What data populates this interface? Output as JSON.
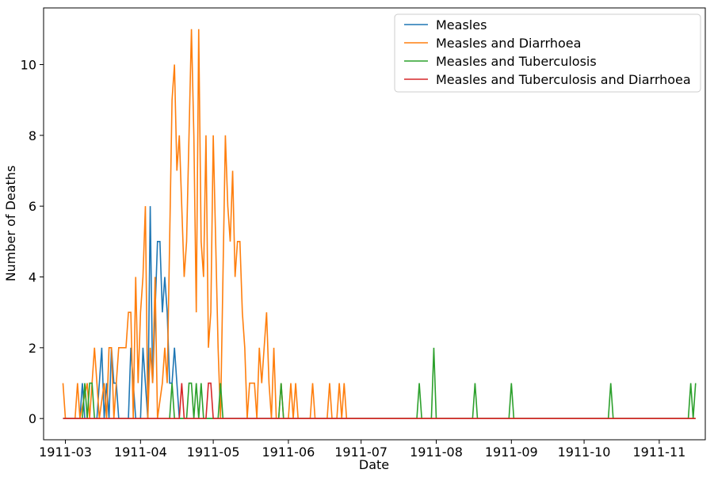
{
  "chart_data": {
    "type": "line",
    "xlabel": "Date",
    "ylabel": "Number of Deaths",
    "x_ticks": [
      "1911-03",
      "1911-04",
      "1911-05",
      "1911-06",
      "1911-07",
      "1911-08",
      "1911-09",
      "1911-10",
      "1911-11"
    ],
    "y_ticks": [
      0,
      2,
      4,
      6,
      8,
      10
    ],
    "xlim": [
      "1911-02-20",
      "1911-11-20"
    ],
    "ylim": [
      -0.6,
      11.6
    ],
    "legend_position": "top-right",
    "grid": false,
    "series": [
      {
        "name": "Measles",
        "color": "#1f77b4",
        "points": [
          [
            "1911-02-28",
            0
          ],
          [
            "1911-03-07",
            0
          ],
          [
            "1911-03-08",
            1
          ],
          [
            "1911-03-09",
            0
          ],
          [
            "1911-03-14",
            0
          ],
          [
            "1911-03-16",
            2
          ],
          [
            "1911-03-17",
            0
          ],
          [
            "1911-03-18",
            1
          ],
          [
            "1911-03-19",
            0
          ],
          [
            "1911-03-20",
            2
          ],
          [
            "1911-03-21",
            1
          ],
          [
            "1911-03-22",
            1
          ],
          [
            "1911-03-23",
            0
          ],
          [
            "1911-03-27",
            0
          ],
          [
            "1911-03-28",
            2
          ],
          [
            "1911-03-29",
            1
          ],
          [
            "1911-03-30",
            0
          ],
          [
            "1911-04-01",
            0
          ],
          [
            "1911-04-02",
            2
          ],
          [
            "1911-04-03",
            1
          ],
          [
            "1911-04-04",
            0
          ],
          [
            "1911-04-05",
            6
          ],
          [
            "1911-04-06",
            1
          ],
          [
            "1911-04-07",
            3
          ],
          [
            "1911-04-08",
            5
          ],
          [
            "1911-04-09",
            5
          ],
          [
            "1911-04-10",
            3
          ],
          [
            "1911-04-11",
            4
          ],
          [
            "1911-04-12",
            3
          ],
          [
            "1911-04-13",
            1
          ],
          [
            "1911-04-14",
            1
          ],
          [
            "1911-04-15",
            2
          ],
          [
            "1911-04-16",
            1
          ],
          [
            "1911-04-17",
            0
          ],
          [
            "1911-11-16",
            0
          ]
        ]
      },
      {
        "name": "Measles and Diarrhoea",
        "color": "#ff7f0e",
        "points": [
          [
            "1911-02-28",
            1
          ],
          [
            "1911-03-01",
            0
          ],
          [
            "1911-03-05",
            0
          ],
          [
            "1911-03-06",
            1
          ],
          [
            "1911-03-07",
            0
          ],
          [
            "1911-03-10",
            1
          ],
          [
            "1911-03-11",
            0
          ],
          [
            "1911-03-12",
            1
          ],
          [
            "1911-03-13",
            2
          ],
          [
            "1911-03-14",
            1
          ],
          [
            "1911-03-15",
            0
          ],
          [
            "1911-03-17",
            1
          ],
          [
            "1911-03-18",
            0
          ],
          [
            "1911-03-19",
            2
          ],
          [
            "1911-03-20",
            2
          ],
          [
            "1911-03-21",
            0
          ],
          [
            "1911-03-22",
            1
          ],
          [
            "1911-03-23",
            2
          ],
          [
            "1911-03-25",
            2
          ],
          [
            "1911-03-26",
            2
          ],
          [
            "1911-03-27",
            3
          ],
          [
            "1911-03-28",
            3
          ],
          [
            "1911-03-29",
            0
          ],
          [
            "1911-03-30",
            4
          ],
          [
            "1911-03-31",
            1
          ],
          [
            "1911-04-01",
            3
          ],
          [
            "1911-04-02",
            4
          ],
          [
            "1911-04-03",
            6
          ],
          [
            "1911-04-04",
            0
          ],
          [
            "1911-04-05",
            2
          ],
          [
            "1911-04-06",
            1
          ],
          [
            "1911-04-07",
            4
          ],
          [
            "1911-04-08",
            0
          ],
          [
            "1911-04-10",
            1
          ],
          [
            "1911-04-11",
            2
          ],
          [
            "1911-04-12",
            1
          ],
          [
            "1911-04-13",
            5
          ],
          [
            "1911-04-14",
            9
          ],
          [
            "1911-04-15",
            10
          ],
          [
            "1911-04-16",
            7
          ],
          [
            "1911-04-17",
            8
          ],
          [
            "1911-04-18",
            6
          ],
          [
            "1911-04-19",
            4
          ],
          [
            "1911-04-20",
            5
          ],
          [
            "1911-04-22",
            11
          ],
          [
            "1911-04-23",
            8
          ],
          [
            "1911-04-24",
            3
          ],
          [
            "1911-04-25",
            11
          ],
          [
            "1911-04-26",
            5
          ],
          [
            "1911-04-27",
            4
          ],
          [
            "1911-04-28",
            8
          ],
          [
            "1911-04-29",
            2
          ],
          [
            "1911-04-30",
            3
          ],
          [
            "1911-05-01",
            8
          ],
          [
            "1911-05-02",
            5
          ],
          [
            "1911-05-03",
            2
          ],
          [
            "1911-05-04",
            0
          ],
          [
            "1911-05-05",
            4
          ],
          [
            "1911-05-06",
            8
          ],
          [
            "1911-05-07",
            6
          ],
          [
            "1911-05-08",
            5
          ],
          [
            "1911-05-09",
            7
          ],
          [
            "1911-05-10",
            4
          ],
          [
            "1911-05-11",
            5
          ],
          [
            "1911-05-12",
            5
          ],
          [
            "1911-05-13",
            3
          ],
          [
            "1911-05-14",
            2
          ],
          [
            "1911-05-15",
            0
          ],
          [
            "1911-05-16",
            1
          ],
          [
            "1911-05-18",
            1
          ],
          [
            "1911-05-19",
            0
          ],
          [
            "1911-05-20",
            2
          ],
          [
            "1911-05-21",
            1
          ],
          [
            "1911-05-22",
            2
          ],
          [
            "1911-05-23",
            3
          ],
          [
            "1911-05-24",
            1
          ],
          [
            "1911-05-25",
            0
          ],
          [
            "1911-05-26",
            2
          ],
          [
            "1911-05-27",
            0
          ],
          [
            "1911-05-28",
            0
          ],
          [
            "1911-05-29",
            1
          ],
          [
            "1911-05-30",
            0
          ],
          [
            "1911-06-01",
            0
          ],
          [
            "1911-06-02",
            1
          ],
          [
            "1911-06-03",
            0
          ],
          [
            "1911-06-04",
            1
          ],
          [
            "1911-06-05",
            0
          ],
          [
            "1911-06-10",
            0
          ],
          [
            "1911-06-11",
            1
          ],
          [
            "1911-06-12",
            0
          ],
          [
            "1911-06-17",
            0
          ],
          [
            "1911-06-18",
            1
          ],
          [
            "1911-06-19",
            0
          ],
          [
            "1911-06-21",
            0
          ],
          [
            "1911-06-22",
            1
          ],
          [
            "1911-06-23",
            0
          ],
          [
            "1911-06-24",
            1
          ],
          [
            "1911-06-25",
            0
          ],
          [
            "1911-11-16",
            0
          ]
        ]
      },
      {
        "name": "Measles and Tuberculosis",
        "color": "#2ca02c",
        "points": [
          [
            "1911-02-28",
            0
          ],
          [
            "1911-03-08",
            0
          ],
          [
            "1911-03-09",
            1
          ],
          [
            "1911-03-10",
            0
          ],
          [
            "1911-03-11",
            1
          ],
          [
            "1911-03-12",
            1
          ],
          [
            "1911-03-13",
            0
          ],
          [
            "1911-04-13",
            0
          ],
          [
            "1911-04-14",
            1
          ],
          [
            "1911-04-15",
            0
          ],
          [
            "1911-04-19",
            0
          ],
          [
            "1911-04-20",
            0
          ],
          [
            "1911-04-21",
            1
          ],
          [
            "1911-04-22",
            1
          ],
          [
            "1911-04-23",
            0
          ],
          [
            "1911-04-24",
            1
          ],
          [
            "1911-04-25",
            0
          ],
          [
            "1911-04-26",
            1
          ],
          [
            "1911-04-27",
            0
          ],
          [
            "1911-05-03",
            0
          ],
          [
            "1911-05-04",
            1
          ],
          [
            "1911-05-05",
            0
          ],
          [
            "1911-05-28",
            0
          ],
          [
            "1911-05-29",
            1
          ],
          [
            "1911-05-30",
            0
          ],
          [
            "1911-07-24",
            0
          ],
          [
            "1911-07-25",
            1
          ],
          [
            "1911-07-26",
            0
          ],
          [
            "1911-07-30",
            0
          ],
          [
            "1911-07-31",
            2
          ],
          [
            "1911-08-01",
            0
          ],
          [
            "1911-08-16",
            0
          ],
          [
            "1911-08-17",
            1
          ],
          [
            "1911-08-18",
            0
          ],
          [
            "1911-08-31",
            0
          ],
          [
            "1911-09-01",
            1
          ],
          [
            "1911-09-02",
            0
          ],
          [
            "1911-10-11",
            0
          ],
          [
            "1911-10-12",
            1
          ],
          [
            "1911-10-13",
            0
          ],
          [
            "1911-11-13",
            0
          ],
          [
            "1911-11-14",
            1
          ],
          [
            "1911-11-15",
            0
          ],
          [
            "1911-11-16",
            1
          ]
        ]
      },
      {
        "name": "Measles and Tuberculosis and Diarrhoea",
        "color": "#d62728",
        "points": [
          [
            "1911-02-28",
            0
          ],
          [
            "1911-04-17",
            0
          ],
          [
            "1911-04-18",
            1
          ],
          [
            "1911-04-19",
            0
          ],
          [
            "1911-04-28",
            0
          ],
          [
            "1911-04-29",
            1
          ],
          [
            "1911-04-30",
            1
          ],
          [
            "1911-05-01",
            0
          ],
          [
            "1911-11-16",
            0
          ]
        ]
      }
    ]
  }
}
